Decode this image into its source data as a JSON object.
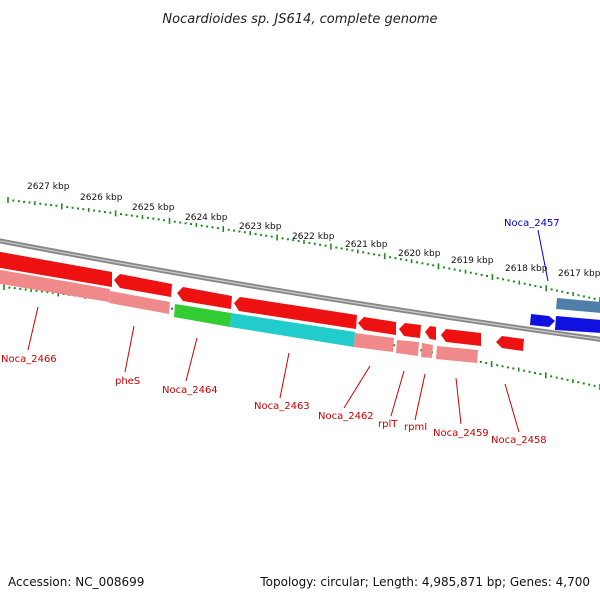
{
  "title": "Nocardioides sp. JS614, complete genome",
  "footer": {
    "accession": "Accession: NC_008699",
    "summary": "Topology: circular; Length: 4,985,871 bp; Genes: 4,700"
  },
  "colors": {
    "forward_gene": "#1010e0",
    "reverse_gene": "#ee1111",
    "reverse_gene_light": "#f08a8a",
    "green_segment": "#33cc33",
    "cyan_segment": "#22cccc",
    "steel_segment": "#4f7fa8",
    "backbone": "#888888",
    "tick": "#1e8a1e",
    "label_reverse": "#cc0000",
    "label_forward": "#0000cc"
  },
  "scale_labels": [
    "2627 kbp",
    "2626 kbp",
    "2625 kbp",
    "2624 kbp",
    "2623 kbp",
    "2622 kbp",
    "2621 kbp",
    "2620 kbp",
    "2619 kbp",
    "2618 kbp",
    "2617 kbp"
  ],
  "genes": [
    {
      "label": "Noca_2466",
      "strand": "reverse"
    },
    {
      "label": "pheS",
      "strand": "reverse"
    },
    {
      "label": "Noca_2464",
      "strand": "reverse"
    },
    {
      "label": "Noca_2463",
      "strand": "reverse"
    },
    {
      "label": "Noca_2462",
      "strand": "reverse"
    },
    {
      "label": "rplT",
      "strand": "reverse"
    },
    {
      "label": "rpmI",
      "strand": "reverse"
    },
    {
      "label": "Noca_2459",
      "strand": "reverse"
    },
    {
      "label": "Noca_2458",
      "strand": "reverse"
    },
    {
      "label": "Noca_2457",
      "strand": "forward"
    }
  ]
}
